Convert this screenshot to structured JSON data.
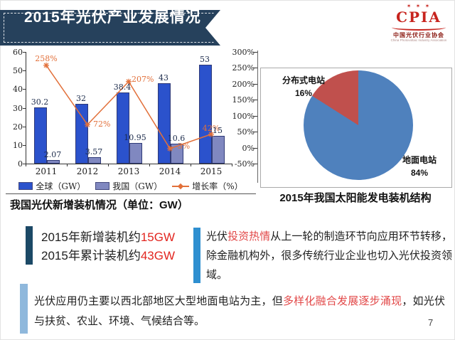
{
  "header": {
    "title": "2015年光伏产业发展情况",
    "logo": {
      "stars": "✶ ✶ ✶",
      "acronym": "CPIA",
      "org_cn": "中国光伏行业协会",
      "org_en": "China Photovoltaic Industry Association"
    }
  },
  "colors": {
    "ribbon_navy": "#26415C",
    "bar_global": "#2B52CC",
    "bar_china": "#8088C0",
    "growth_line": "#E2703A",
    "pie_ground": "#4F81BD",
    "pie_distributed": "#C0504D",
    "accent_red": "#E2251F",
    "highlight_red": "#E24848",
    "callout_left_bar": "#1C4966",
    "callout_right_bar": "#2E8FD0",
    "callout_bottom_bar": "#8FB8DC"
  },
  "chart_data": [
    {
      "type": "bar",
      "title": "我国光伏新增装机情况（单位：GW）",
      "categories": [
        "2011",
        "2012",
        "2013",
        "2014",
        "2015"
      ],
      "series": [
        {
          "name": "全球（GW）",
          "kind": "bar",
          "axis": "left",
          "color": "#2B52CC",
          "values": [
            30.2,
            32,
            38.4,
            43,
            53
          ],
          "labels": [
            "30.2",
            "32",
            "38.4",
            "43",
            "53"
          ]
        },
        {
          "name": "我国（GW）",
          "kind": "bar",
          "axis": "left",
          "color": "#8088C0",
          "values": [
            2.07,
            3.57,
            10.95,
            10.6,
            15
          ],
          "labels": [
            "2.07",
            "3.57",
            "10.95",
            "10.6",
            "15"
          ]
        },
        {
          "name": "增长率（%）",
          "kind": "line",
          "axis": "right",
          "color": "#E2703A",
          "values": [
            258,
            72,
            207,
            -3,
            42
          ],
          "labels": [
            "258%",
            "72%",
            "207%",
            "-3%",
            "42%"
          ]
        }
      ],
      "left_axis": {
        "min": 0,
        "max": 60,
        "step": 10
      },
      "right_axis": {
        "min": -50,
        "max": 300,
        "step": 50,
        "suffix": "%"
      },
      "legend_position": "bottom",
      "grid": false
    },
    {
      "type": "pie",
      "title": "2015年我国太阳能发电装机结构",
      "slices": [
        {
          "label": "地面电站",
          "pct_label": "84%",
          "value": 84,
          "color": "#4F81BD"
        },
        {
          "label": "分布式电站",
          "pct_label": "16%",
          "value": 16,
          "color": "#C0504D"
        }
      ]
    }
  ],
  "callouts": {
    "left": {
      "line1_prefix": "2015年新增装机约",
      "line1_value": "15GW",
      "line2_prefix": "2015年累计装机约",
      "line2_value": "43GW"
    },
    "right": {
      "seg1": "光伏",
      "highlight": "投资热情",
      "seg2": "从上一轮的制造环节向应用环节转移，除金融机构外，很多传统行业企业也切入光伏投资领域。"
    },
    "bottom": {
      "seg1": "光伏应用仍主要以西北部地区大型地面电站为主，但",
      "highlight": "多样化融合发展逐步涌现",
      "seg2": "，如光伏与扶贫、农业、环境、气候结合等。"
    }
  },
  "footer": {
    "page_number": "7"
  }
}
